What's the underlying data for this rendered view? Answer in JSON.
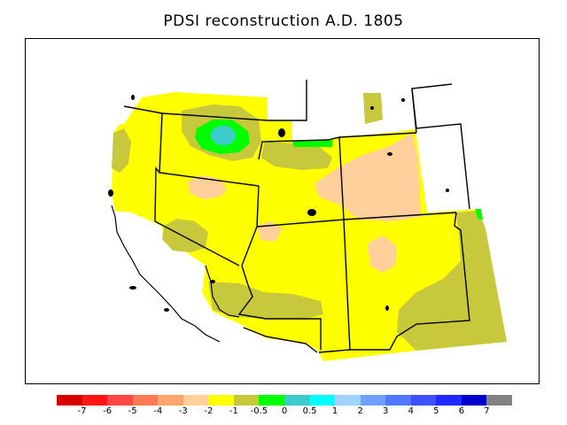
{
  "title": "PDSI reconstruction A.D. 1805",
  "legend": {
    "colors": [
      "#d60000",
      "#ff1414",
      "#ff4646",
      "#ff7a50",
      "#ffa66e",
      "#ffd09c",
      "#ffff00",
      "#c8c83c",
      "#00ff00",
      "#3ccccc",
      "#00ffff",
      "#a0d2ff",
      "#6ea0ff",
      "#5078ff",
      "#3c50ff",
      "#1e28ff",
      "#0000c8",
      "#828282"
    ],
    "labels": [
      "-7",
      "-6",
      "-5",
      "-4",
      "-3",
      "-2",
      "-1",
      "-0.5",
      "0",
      "0.5",
      "1",
      "2",
      "3",
      "4",
      "5",
      "6",
      "7"
    ]
  },
  "map": {
    "fill_colors": {
      "yellow": "#ffff00",
      "olive": "#c8c83c",
      "peach": "#ffd09c",
      "green": "#00ff00",
      "cyan": "#3ccccc",
      "water": "#ffffff",
      "line": "#000000"
    }
  }
}
